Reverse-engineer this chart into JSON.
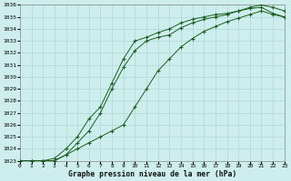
{
  "title": "Graphe pression niveau de la mer (hPa)",
  "bg_color": "#ceeeed",
  "grid_color": "#aed8d5",
  "line_color": "#1a5e20",
  "xlim": [
    0,
    23
  ],
  "ylim": [
    1023,
    1036
  ],
  "xticks": [
    0,
    1,
    2,
    3,
    4,
    5,
    6,
    7,
    8,
    9,
    10,
    11,
    12,
    13,
    14,
    15,
    16,
    17,
    18,
    19,
    20,
    21,
    22,
    23
  ],
  "yticks": [
    1023,
    1024,
    1025,
    1026,
    1027,
    1028,
    1029,
    1030,
    1031,
    1032,
    1033,
    1034,
    1035,
    1036
  ],
  "line1_x": [
    0,
    1,
    2,
    3,
    4,
    5,
    6,
    7,
    8,
    9,
    10,
    11,
    12,
    13,
    14,
    15,
    16,
    17,
    18,
    19,
    20,
    21,
    22,
    23
  ],
  "line1_y": [
    1023,
    1023,
    1023,
    1023,
    1023.5,
    1024.5,
    1025.5,
    1027.0,
    1029.0,
    1030.8,
    1032.2,
    1033.0,
    1033.3,
    1033.5,
    1034.1,
    1034.5,
    1034.8,
    1035.0,
    1035.2,
    1035.5,
    1035.7,
    1035.8,
    1035.3,
    1035.0
  ],
  "line2_x": [
    0,
    1,
    2,
    3,
    4,
    5,
    6,
    7,
    8,
    9,
    10,
    11,
    12,
    13,
    14,
    15,
    16,
    17,
    18,
    19,
    20,
    21,
    22,
    23
  ],
  "line2_y": [
    1023,
    1023,
    1023,
    1023.2,
    1024.0,
    1025.0,
    1026.5,
    1027.5,
    1029.5,
    1031.5,
    1033.0,
    1033.3,
    1033.7,
    1034.0,
    1034.5,
    1034.8,
    1035.0,
    1035.2,
    1035.3,
    1035.5,
    1035.8,
    1036.0,
    1035.8,
    1035.5
  ],
  "line3_x": [
    0,
    1,
    2,
    3,
    4,
    5,
    6,
    7,
    8,
    9,
    10,
    11,
    12,
    13,
    14,
    15,
    16,
    17,
    18,
    19,
    20,
    21,
    22,
    23
  ],
  "line3_y": [
    1023,
    1023,
    1023,
    1023,
    1023.5,
    1024.0,
    1024.5,
    1025.0,
    1025.5,
    1026.0,
    1027.5,
    1029.0,
    1030.5,
    1031.5,
    1032.5,
    1033.2,
    1033.8,
    1034.2,
    1034.6,
    1034.9,
    1035.2,
    1035.5,
    1035.2,
    1035.0
  ]
}
